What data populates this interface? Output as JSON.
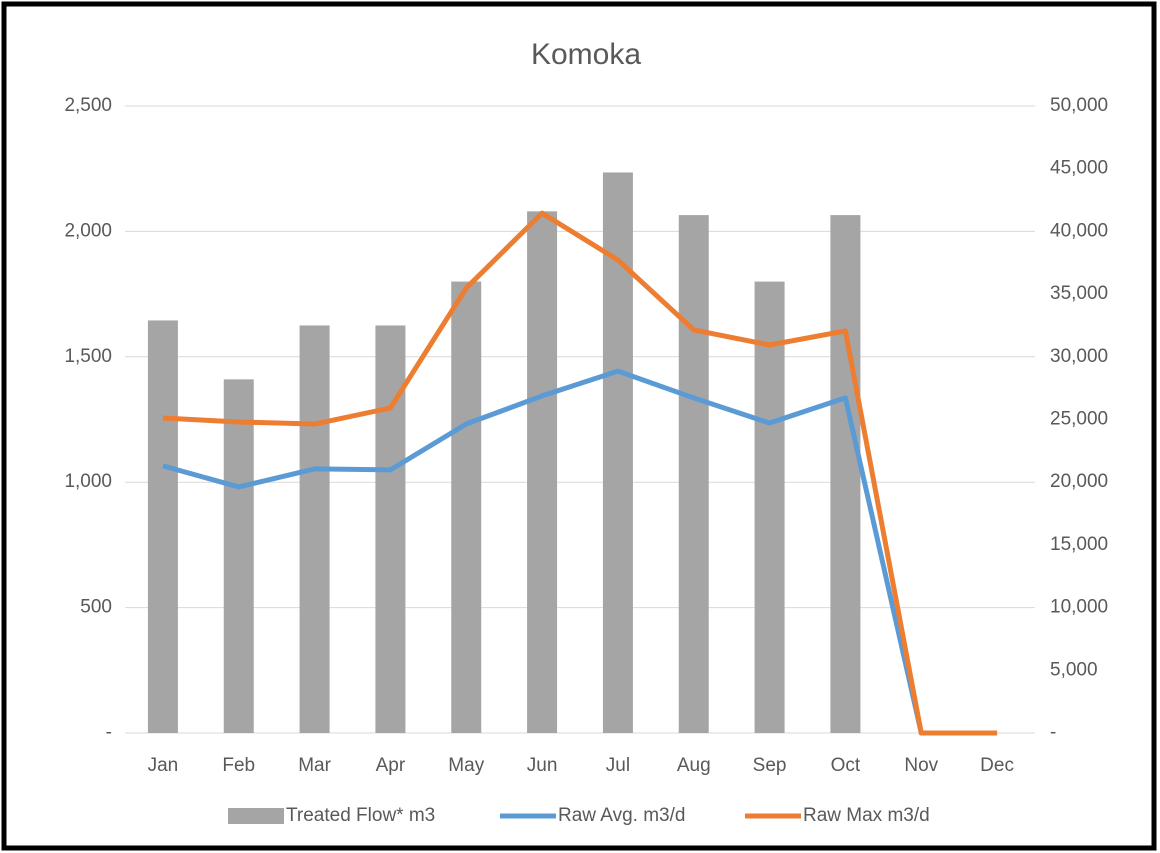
{
  "chart_data": {
    "type": "bar+line",
    "title": "Komoka",
    "categories": [
      "Jan",
      "Feb",
      "Mar",
      "Apr",
      "May",
      "Jun",
      "Jul",
      "Aug",
      "Sep",
      "Oct",
      "Nov",
      "Dec"
    ],
    "series": [
      {
        "name": "Treated Flow* m3",
        "type": "bar",
        "axis": "y2",
        "color": "#a5a5a5",
        "values": [
          32900,
          28200,
          32500,
          32500,
          36000,
          41600,
          44700,
          41300,
          36000,
          41300,
          0,
          0
        ]
      },
      {
        "name": "Raw Avg. m3/d",
        "type": "line",
        "axis": "y",
        "color": "#5b9bd5",
        "values": [
          1065,
          981,
          1053,
          1049,
          1232,
          1344,
          1443,
          1336,
          1236,
          1336,
          0,
          0
        ]
      },
      {
        "name": "Raw Max m3/d",
        "type": "line",
        "axis": "y",
        "color": "#ed7d31",
        "values": [
          1256,
          1240,
          1232,
          1296,
          1774,
          2073,
          1886,
          1607,
          1547,
          1603,
          0,
          0
        ]
      }
    ],
    "ylim": [
      0,
      2500
    ],
    "yticks": [
      {
        "value": 0,
        "label": "-"
      },
      500,
      {
        "value": 1000,
        "label": "1,000"
      },
      {
        "value": 1500,
        "label": "1,500"
      },
      {
        "value": 2000,
        "label": "2,000"
      },
      {
        "value": 2500,
        "label": "2,500"
      }
    ],
    "y2lim": [
      0,
      50000
    ],
    "y2ticks": [
      {
        "value": 0,
        "label": "-"
      },
      {
        "value": 5000,
        "label": "5,000"
      },
      {
        "value": 10000,
        "label": "10,000"
      },
      {
        "value": 15000,
        "label": "15,000"
      },
      {
        "value": 20000,
        "label": "20,000"
      },
      {
        "value": 25000,
        "label": "25,000"
      },
      {
        "value": 30000,
        "label": "30,000"
      },
      {
        "value": 35000,
        "label": "35,000"
      },
      {
        "value": 40000,
        "label": "40,000"
      },
      {
        "value": 45000,
        "label": "45,000"
      },
      {
        "value": 50000,
        "label": "50,000"
      }
    ],
    "grid": true,
    "legend": "bottom"
  }
}
